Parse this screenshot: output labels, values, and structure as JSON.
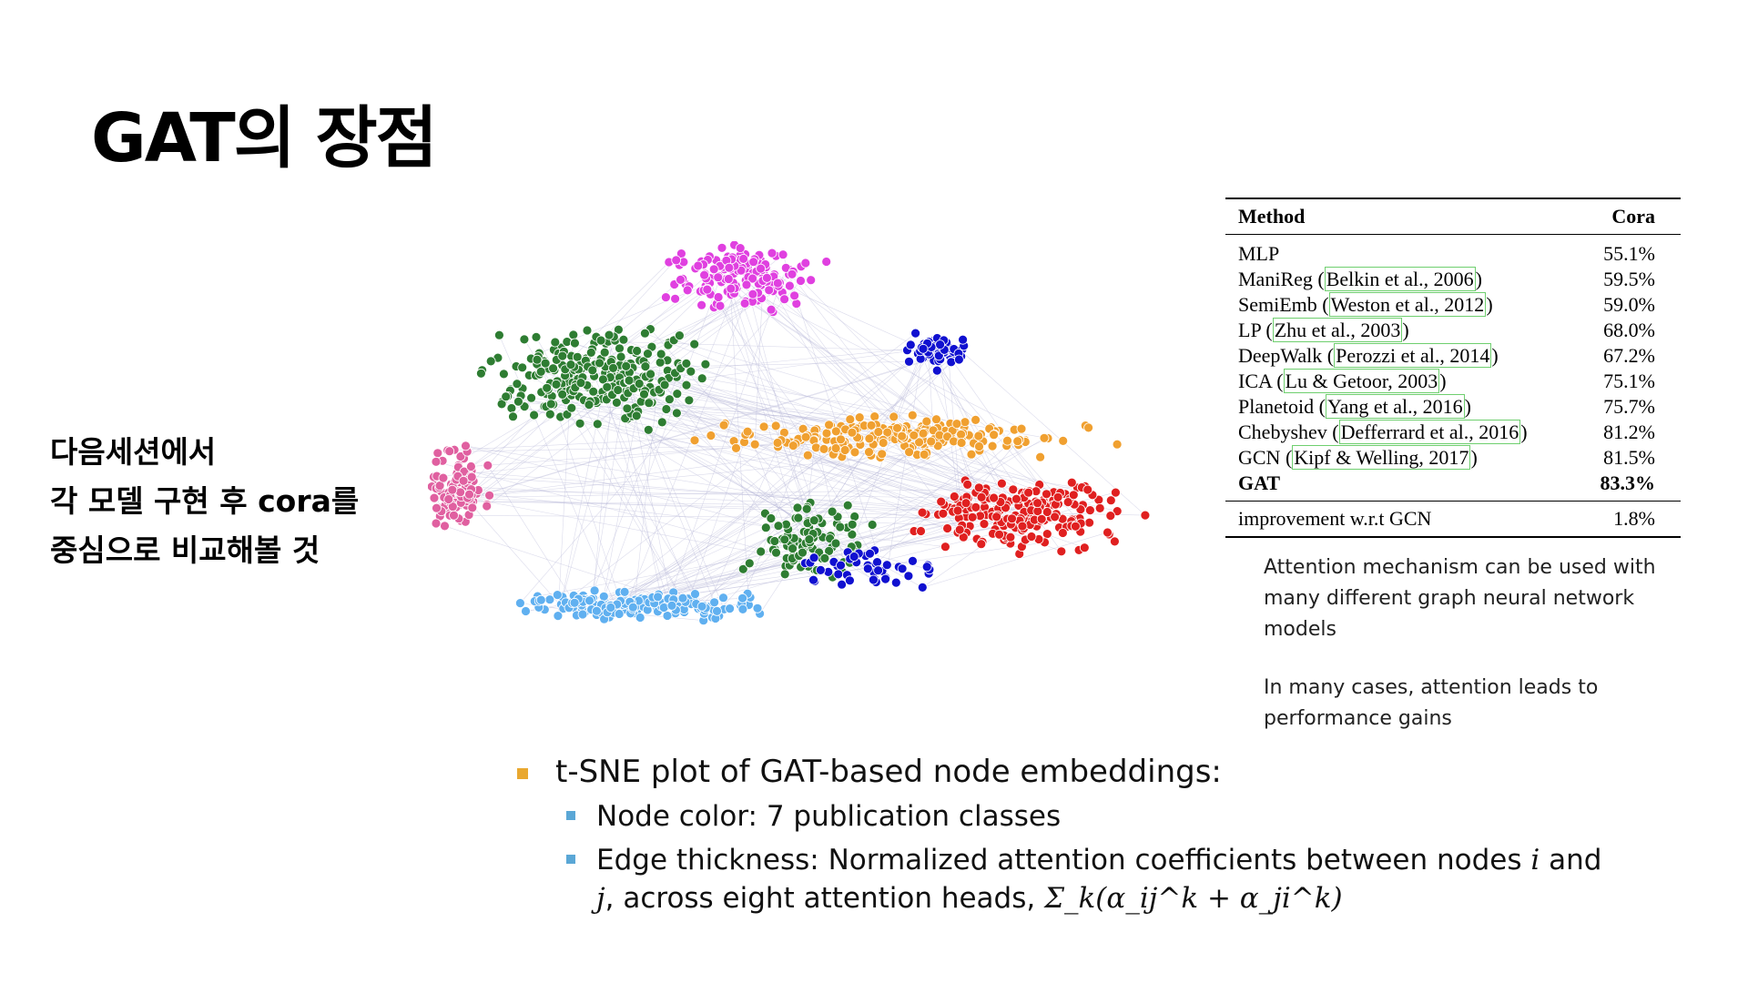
{
  "slide": {
    "title": "GAT의 장점",
    "side_lines": [
      "다음세션에서",
      "각 모델 구현 후 cora를",
      "중심으로 비교해볼 것"
    ]
  },
  "table": {
    "header": {
      "method": "Method",
      "dataset": "Cora"
    },
    "rows": [
      {
        "name": "MLP",
        "cite": "",
        "value": "55.1%"
      },
      {
        "name": "ManiReg",
        "cite": "Belkin et al., 2006",
        "value": "59.5%"
      },
      {
        "name": "SemiEmb",
        "cite": "Weston et al., 2012",
        "value": "59.0%"
      },
      {
        "name": "LP",
        "cite": "Zhu et al., 2003",
        "value": "68.0%"
      },
      {
        "name": "DeepWalk",
        "cite": "Perozzi et al., 2014",
        "value": "67.2%"
      },
      {
        "name": "ICA",
        "cite": "Lu & Getoor, 2003",
        "value": "75.1%"
      },
      {
        "name": "Planetoid",
        "cite": "Yang et al., 2016",
        "value": "75.7%"
      },
      {
        "name": "Chebyshev",
        "cite": "Defferrard et al., 2016",
        "value": "81.2%"
      },
      {
        "name": "GCN",
        "cite": "Kipf & Welling, 2017",
        "value": "81.5%"
      }
    ],
    "gat": {
      "name": "GAT",
      "value": "83.3%"
    },
    "improvement": {
      "label": "improvement w.r.t GCN",
      "value": "1.8%"
    }
  },
  "notes": [
    "Attention mechanism can be used with many different graph neural network models",
    "In many cases, attention leads to performance gains"
  ],
  "bullets": {
    "main": "t-SNE plot of GAT-based node embeddings:",
    "sub1": "Node color: 7 publication classes",
    "sub2_a": "Edge thickness: Normalized attention coefficients between nodes ",
    "sub2_i": "i",
    "sub2_b": " and",
    "sub2_j": "j",
    "sub2_c": ", across eight attention heads, ",
    "formula": "Σ_k(α_ij^k + α_ji^k)"
  },
  "colors": {
    "bullet_main": "#e9a830",
    "bullet_sub": "#5aa7d6",
    "classes": [
      "#e040e0",
      "#2e7d32",
      "#1010d0",
      "#f0a030",
      "#e02020",
      "#60b0f0",
      "#e060a0"
    ]
  }
}
